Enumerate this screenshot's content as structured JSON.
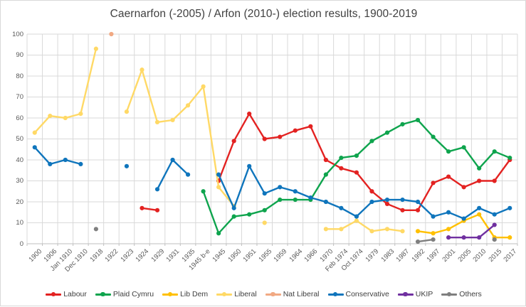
{
  "chart_data": {
    "type": "line",
    "title": "Caernarfon (-2005) / Arfon (2010-) election results, 1900-2019",
    "grid": true,
    "legend_position": "bottom",
    "y_axis": {
      "min": 0,
      "max": 100,
      "step": 10
    },
    "categories": [
      "1900",
      "1906",
      "Jan 1910",
      "Dec 1910",
      "1918",
      "1922",
      "1923",
      "1924",
      "1929",
      "1931",
      "1935",
      "1945 b-e",
      "1945",
      "1950",
      "1951",
      "1955",
      "1959",
      "1964",
      "1966",
      "1970",
      "Feb 1974",
      "Oct 1974",
      "1979",
      "1983",
      "1987",
      "1992",
      "1997",
      "2001",
      "2005",
      "2010",
      "2015",
      "2017"
    ],
    "series": [
      {
        "name": "Labour",
        "color": "#e32221",
        "values": [
          null,
          null,
          null,
          null,
          null,
          null,
          null,
          17,
          16,
          null,
          null,
          null,
          30,
          49,
          62,
          50,
          51,
          54,
          56,
          40,
          36,
          34,
          25,
          19,
          16,
          16,
          29,
          32,
          27,
          30,
          30,
          40
        ]
      },
      {
        "name": "Plaid Cymru",
        "color": "#0ea44d",
        "values": [
          null,
          null,
          null,
          null,
          null,
          null,
          null,
          null,
          null,
          null,
          null,
          25,
          5,
          13,
          14,
          16,
          21,
          21,
          21,
          33,
          41,
          42,
          49,
          53,
          57,
          59,
          51,
          44,
          46,
          36,
          44,
          41
        ]
      },
      {
        "name": "Lib Dem",
        "color": "#ffc000",
        "values": [
          null,
          null,
          null,
          null,
          null,
          null,
          null,
          null,
          null,
          null,
          null,
          null,
          null,
          null,
          null,
          null,
          null,
          null,
          null,
          null,
          null,
          null,
          null,
          null,
          null,
          6,
          5,
          7,
          11,
          14,
          3,
          3
        ]
      },
      {
        "name": "Liberal",
        "color": "#ffd966",
        "values": [
          53,
          61,
          60,
          62,
          93,
          null,
          63,
          83,
          58,
          59,
          66,
          75,
          27,
          18,
          null,
          10,
          null,
          null,
          null,
          7,
          7,
          11,
          6,
          7,
          6,
          null,
          null,
          null,
          null,
          null,
          null,
          null
        ]
      },
      {
        "name": "Nat Liberal",
        "color": "#f1a983",
        "values": [
          null,
          null,
          null,
          null,
          null,
          100,
          null,
          null,
          null,
          null,
          null,
          null,
          null,
          null,
          null,
          null,
          null,
          null,
          null,
          null,
          null,
          null,
          null,
          null,
          null,
          null,
          null,
          null,
          null,
          null,
          null,
          null
        ]
      },
      {
        "name": "Conservative",
        "color": "#0f75bc",
        "values": [
          46,
          38,
          40,
          38,
          null,
          null,
          37,
          null,
          26,
          40,
          33,
          null,
          33,
          17,
          37,
          24,
          27,
          25,
          22,
          20,
          17,
          13,
          20,
          21,
          21,
          20,
          13,
          15,
          12,
          17,
          14,
          17
        ]
      },
      {
        "name": "UKIP",
        "color": "#7030a0",
        "values": [
          null,
          null,
          null,
          null,
          null,
          null,
          null,
          null,
          null,
          null,
          null,
          null,
          null,
          null,
          null,
          null,
          null,
          null,
          null,
          null,
          null,
          null,
          null,
          null,
          null,
          null,
          null,
          3,
          3,
          3,
          9,
          null
        ]
      },
      {
        "name": "Others",
        "color": "#7f7f7f",
        "values": [
          null,
          null,
          null,
          null,
          7,
          null,
          null,
          null,
          null,
          null,
          null,
          null,
          null,
          null,
          null,
          null,
          null,
          null,
          null,
          null,
          null,
          null,
          null,
          null,
          null,
          1,
          2,
          null,
          null,
          null,
          2,
          null
        ]
      }
    ],
    "style": {
      "grid_color": "#d9d9d9",
      "axis_color": "#bfbfbf",
      "label_color": "#595959",
      "title_color": "#404040"
    }
  }
}
